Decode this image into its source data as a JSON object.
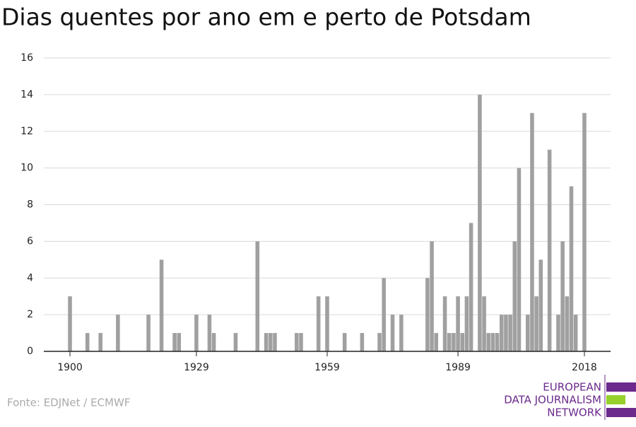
{
  "chart_data": {
    "type": "bar",
    "title": "Dias quentes por ano em e perto de Potsdam",
    "x": [
      1900,
      1904,
      1907,
      1911,
      1918,
      1921,
      1924,
      1925,
      1929,
      1932,
      1933,
      1938,
      1943,
      1945,
      1946,
      1947,
      1952,
      1953,
      1957,
      1959,
      1963,
      1967,
      1971,
      1972,
      1974,
      1976,
      1982,
      1983,
      1984,
      1986,
      1987,
      1988,
      1989,
      1990,
      1991,
      1992,
      1994,
      1995,
      1996,
      1997,
      1998,
      1999,
      2000,
      2001,
      2002,
      2003,
      2005,
      2006,
      2007,
      2008,
      2010,
      2012,
      2013,
      2014,
      2015,
      2016,
      2018
    ],
    "values": [
      3,
      1,
      1,
      2,
      2,
      5,
      1,
      1,
      2,
      2,
      1,
      1,
      6,
      1,
      1,
      1,
      1,
      1,
      3,
      3,
      1,
      1,
      1,
      4,
      2,
      2,
      4,
      6,
      1,
      3,
      1,
      1,
      3,
      1,
      3,
      7,
      14,
      3,
      1,
      1,
      1,
      2,
      2,
      2,
      6,
      10,
      2,
      13,
      3,
      5,
      11,
      2,
      6,
      3,
      9,
      2,
      13
    ],
    "color": "#a0a0a0",
    "xlim": [
      1894,
      2024
    ],
    "xticks": [
      1900,
      1929,
      1959,
      1989,
      2018
    ],
    "ylim": [
      0,
      16
    ],
    "yticks": [
      0,
      2,
      4,
      6,
      8,
      10,
      12,
      14,
      16
    ],
    "grid": true,
    "source": "Fonte: EDJNet / ECMWF"
  },
  "logo": [
    "EUROPEAN",
    "DATA JOURNALISM",
    "NETWORK"
  ]
}
